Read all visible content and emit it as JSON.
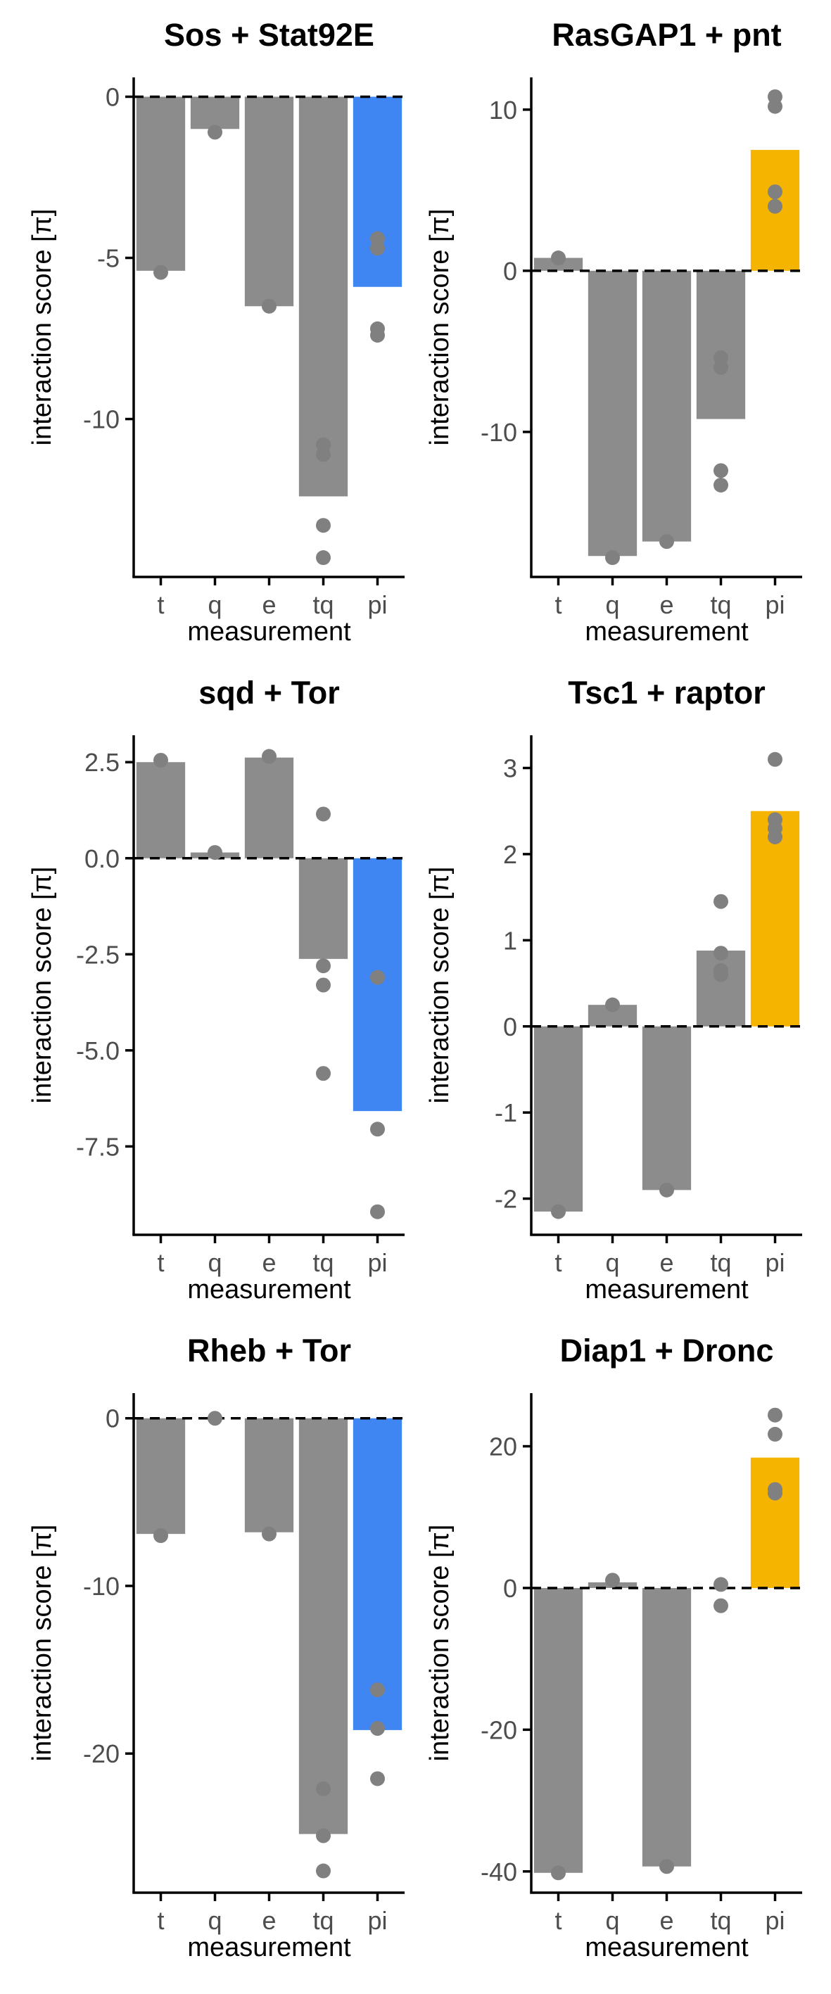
{
  "colors": {
    "bar_default": "#8c8c8c",
    "point": "#808080",
    "pi_negative": "#3f86f2",
    "pi_positive": "#f5b400",
    "axis": "#000000",
    "tick_text": "#4d4d4d"
  },
  "chart_data": [
    {
      "type": "bar",
      "title": "Sos + Stat92E",
      "xlabel": "measurement",
      "ylabel": "interaction score [π]",
      "categories": [
        "t",
        "q",
        "e",
        "tq",
        "pi"
      ],
      "values": [
        -5.4,
        -1.0,
        -6.5,
        -12.4,
        -5.9
      ],
      "points": [
        [
          -5.45
        ],
        [
          -1.1
        ],
        [
          -6.5
        ],
        [
          -10.8,
          -11.1,
          -13.3,
          -14.3
        ],
        [
          -4.4,
          -4.7,
          -7.2,
          -7.4
        ]
      ],
      "yticks": [
        0,
        -5,
        -10
      ],
      "ytick_labels": [
        "0",
        "-5",
        "-10"
      ],
      "ylim": [
        -14.9,
        0.6
      ],
      "pi_color": "pi_negative",
      "grid": false,
      "legend": "none"
    },
    {
      "type": "bar",
      "title": "RasGAP1 + pnt",
      "xlabel": "measurement",
      "ylabel": "interaction score [π]",
      "categories": [
        "t",
        "q",
        "e",
        "tq",
        "pi"
      ],
      "values": [
        0.8,
        -17.7,
        -16.8,
        -9.2,
        7.5
      ],
      "points": [
        [
          0.8
        ],
        [
          -17.8
        ],
        [
          -16.8
        ],
        [
          -5.4,
          -6.0,
          -12.4,
          -13.3
        ],
        [
          10.8,
          10.2,
          4.9,
          4.0
        ]
      ],
      "yticks": [
        10,
        0,
        -10
      ],
      "ytick_labels": [
        "10",
        "0",
        "-10"
      ],
      "ylim": [
        -19.0,
        12.0
      ],
      "pi_color": "pi_positive",
      "grid": false,
      "legend": "none"
    },
    {
      "type": "bar",
      "title": "sqd + Tor",
      "xlabel": "measurement",
      "ylabel": "interaction score [π]",
      "categories": [
        "t",
        "q",
        "e",
        "tq",
        "pi"
      ],
      "values": [
        2.5,
        0.15,
        2.62,
        -2.62,
        -6.58
      ],
      "points": [
        [
          2.55
        ],
        [
          0.15
        ],
        [
          2.65
        ],
        [
          1.15,
          -2.8,
          -3.3,
          -5.6
        ],
        [
          -3.1,
          -7.05,
          -9.2
        ]
      ],
      "yticks": [
        2.5,
        0,
        -2.5,
        -5,
        -7.5
      ],
      "ytick_labels": [
        "2.5",
        "0.0",
        "-2.5",
        "-5.0",
        "-7.5"
      ],
      "ylim": [
        -9.8,
        3.2
      ],
      "pi_color": "pi_negative",
      "grid": false,
      "legend": "none"
    },
    {
      "type": "bar",
      "title": "Tsc1 + raptor",
      "xlabel": "measurement",
      "ylabel": "interaction score [π]",
      "categories": [
        "t",
        "q",
        "e",
        "tq",
        "pi"
      ],
      "values": [
        -2.15,
        0.25,
        -1.9,
        0.88,
        2.5
      ],
      "points": [
        [
          -2.15
        ],
        [
          0.25
        ],
        [
          -1.9
        ],
        [
          1.45,
          0.85,
          0.65,
          0.6
        ],
        [
          3.1,
          2.4,
          2.3,
          2.2
        ]
      ],
      "yticks": [
        3,
        2,
        1,
        0,
        -1,
        -2
      ],
      "ytick_labels": [
        "3",
        "2",
        "1",
        "0",
        "-1",
        "-2"
      ],
      "ylim": [
        -2.42,
        3.38
      ],
      "pi_color": "pi_positive",
      "grid": false,
      "legend": "none"
    },
    {
      "type": "bar",
      "title": "Rheb + Tor",
      "xlabel": "measurement",
      "ylabel": "interaction score [π]",
      "categories": [
        "t",
        "q",
        "e",
        "tq",
        "pi"
      ],
      "values": [
        -6.9,
        0.0,
        -6.8,
        -24.8,
        -18.6
      ],
      "points": [
        [
          -7.0
        ],
        [
          0.0
        ],
        [
          -6.9
        ],
        [
          -22.1,
          -24.9,
          -27.0
        ],
        [
          -16.2,
          -18.5,
          -21.5
        ]
      ],
      "yticks": [
        0,
        -10,
        -20
      ],
      "ytick_labels": [
        "0",
        "-10",
        "-20"
      ],
      "ylim": [
        -28.3,
        1.5
      ],
      "pi_color": "pi_negative",
      "grid": false,
      "legend": "none"
    },
    {
      "type": "bar",
      "title": "Diap1 + Dronc",
      "xlabel": "measurement",
      "ylabel": "interaction score [π]",
      "categories": [
        "t",
        "q",
        "e",
        "tq",
        "pi"
      ],
      "values": [
        -40.2,
        0.8,
        -39.3,
        0.0,
        18.4
      ],
      "points": [
        [
          -40.2
        ],
        [
          1.1
        ],
        [
          -39.3
        ],
        [
          0.5,
          -2.5
        ],
        [
          24.4,
          21.7,
          13.9,
          13.4
        ]
      ],
      "yticks": [
        20,
        0,
        -20,
        -40
      ],
      "ytick_labels": [
        "20",
        "0",
        "-20",
        "-40"
      ],
      "ylim": [
        -43.0,
        27.5
      ],
      "pi_color": "pi_positive",
      "grid": false,
      "legend": "none"
    }
  ]
}
